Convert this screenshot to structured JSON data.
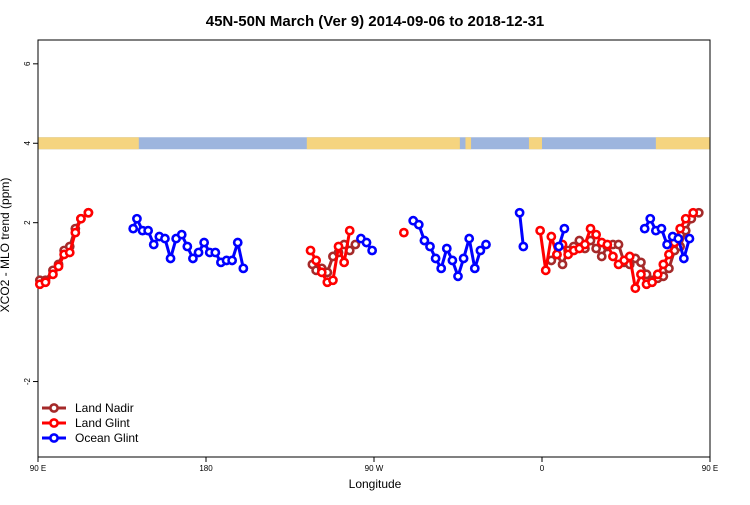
{
  "chart_data": {
    "type": "line",
    "title": "45N-50N March (Ver 9)   2014-09-06 to 2018-12-31",
    "xlabel": "Longitude",
    "ylabel": "XCO2 - MLO trend (ppm)",
    "xlim": [
      90,
      450
    ],
    "ylim": [
      -3.9,
      6.6
    ],
    "x_tick_values": [
      90,
      180,
      270,
      360,
      450,
      540
    ],
    "x_tick_labels": [
      "90 E",
      "180",
      "90 W",
      "0",
      "90 E",
      "180"
    ],
    "y_tick_values": [
      -2,
      2,
      4,
      6
    ],
    "y_tick_labels": [
      "-2",
      "2",
      "4",
      "6"
    ],
    "landmask": {
      "y": 4,
      "land_color": "#F5D47F",
      "ocean_color": "#9DB5DE",
      "land_ranges": [
        [
          90,
          144
        ],
        [
          234,
          316
        ],
        [
          319,
          322
        ],
        [
          353,
          360
        ],
        [
          421,
          505
        ]
      ]
    },
    "legend_position": "bottom-left",
    "series": [
      {
        "name": "Land Nadir",
        "color": "#A52A2A",
        "points": [
          [
            91,
            0.55
          ],
          [
            94,
            0.55
          ],
          [
            98,
            0.8
          ],
          [
            101,
            0.95
          ],
          [
            104,
            1.3
          ],
          [
            107,
            1.4
          ],
          [
            110,
            1.85
          ],
          [
            113,
            2.1
          ],
          [
            117,
            2.25
          ],
          null,
          [
            237,
            0.95
          ],
          [
            239,
            0.8
          ],
          [
            242,
            0.85
          ],
          [
            245,
            0.75
          ],
          [
            248,
            1.15
          ],
          [
            251,
            1.25
          ],
          [
            254,
            1.45
          ],
          [
            257,
            1.3
          ],
          [
            260,
            1.45
          ],
          null,
          [
            365,
            1.05
          ],
          [
            368,
            1.2
          ],
          [
            371,
            0.95
          ],
          [
            374,
            1.3
          ],
          [
            377,
            1.4
          ],
          [
            380,
            1.55
          ],
          [
            383,
            1.35
          ],
          [
            386,
            1.55
          ],
          [
            389,
            1.35
          ],
          [
            392,
            1.15
          ],
          [
            395,
            1.4
          ],
          [
            398,
            1.45
          ],
          [
            401,
            1.45
          ],
          [
            404,
            1.0
          ],
          [
            407,
            0.95
          ],
          [
            410,
            1.1
          ],
          [
            413,
            1.0
          ],
          [
            416,
            0.7
          ],
          [
            419,
            0.55
          ],
          [
            422,
            0.6
          ],
          [
            425,
            0.65
          ],
          [
            428,
            0.85
          ],
          [
            431,
            1.3
          ],
          [
            434,
            1.4
          ],
          [
            437,
            1.8
          ],
          [
            440,
            2.1
          ],
          [
            444,
            2.25
          ]
        ]
      },
      {
        "name": "Land Glint",
        "color": "#FF0000",
        "points": [
          [
            91,
            0.45
          ],
          [
            94,
            0.5
          ],
          [
            98,
            0.7
          ],
          [
            101,
            0.9
          ],
          [
            104,
            1.2
          ],
          [
            107,
            1.25
          ],
          [
            110,
            1.75
          ],
          [
            113,
            2.1
          ],
          [
            117,
            2.25
          ],
          null,
          [
            236,
            1.3
          ],
          [
            239,
            1.05
          ],
          [
            242,
            0.75
          ],
          [
            245,
            0.5
          ],
          [
            248,
            0.55
          ],
          [
            251,
            1.4
          ],
          [
            254,
            1.0
          ],
          [
            257,
            1.8
          ],
          null,
          [
            286,
            1.75
          ],
          null,
          [
            359,
            1.8
          ],
          [
            362,
            0.8
          ],
          [
            365,
            1.65
          ],
          [
            368,
            1.2
          ],
          [
            371,
            1.45
          ],
          [
            374,
            1.2
          ],
          [
            377,
            1.3
          ],
          [
            380,
            1.35
          ],
          [
            383,
            1.45
          ],
          [
            386,
            1.85
          ],
          [
            389,
            1.7
          ],
          [
            392,
            1.5
          ],
          [
            395,
            1.45
          ],
          [
            398,
            1.15
          ],
          [
            401,
            0.95
          ],
          [
            404,
            1.05
          ],
          [
            407,
            1.15
          ],
          [
            410,
            0.35
          ],
          [
            413,
            0.7
          ],
          [
            416,
            0.45
          ],
          [
            419,
            0.5
          ],
          [
            422,
            0.7
          ],
          [
            425,
            0.95
          ],
          [
            428,
            1.2
          ],
          [
            431,
            1.5
          ],
          [
            434,
            1.85
          ],
          [
            437,
            2.1
          ],
          [
            441,
            2.25
          ]
        ]
      },
      {
        "name": "Ocean Glint",
        "color": "#0000FF",
        "points": [
          [
            141,
            1.85
          ],
          [
            143,
            2.1
          ],
          [
            146,
            1.8
          ],
          [
            149,
            1.8
          ],
          [
            152,
            1.45
          ],
          [
            155,
            1.65
          ],
          [
            158,
            1.6
          ],
          [
            161,
            1.1
          ],
          [
            164,
            1.6
          ],
          [
            167,
            1.7
          ],
          [
            170,
            1.4
          ],
          [
            173,
            1.1
          ],
          [
            176,
            1.25
          ],
          [
            179,
            1.5
          ],
          [
            182,
            1.25
          ],
          [
            185,
            1.25
          ],
          [
            188,
            1.0
          ],
          [
            191,
            1.05
          ],
          [
            194,
            1.05
          ],
          [
            197,
            1.5
          ],
          [
            200,
            0.85
          ],
          null,
          [
            263,
            1.6
          ],
          [
            266,
            1.5
          ],
          [
            269,
            1.3
          ],
          null,
          [
            291,
            2.05
          ],
          [
            294,
            1.95
          ],
          [
            297,
            1.55
          ],
          [
            300,
            1.4
          ],
          [
            303,
            1.1
          ],
          [
            306,
            0.85
          ],
          [
            309,
            1.35
          ],
          [
            312,
            1.05
          ],
          [
            315,
            0.65
          ],
          [
            318,
            1.1
          ],
          [
            321,
            1.6
          ],
          [
            324,
            0.85
          ],
          [
            327,
            1.3
          ],
          [
            330,
            1.45
          ],
          null,
          [
            348,
            2.25
          ],
          [
            350,
            1.4
          ],
          null,
          [
            369,
            1.4
          ],
          [
            372,
            1.85
          ],
          null,
          [
            415,
            1.85
          ],
          [
            418,
            2.1
          ],
          [
            421,
            1.8
          ],
          [
            424,
            1.85
          ],
          [
            427,
            1.45
          ],
          [
            430,
            1.65
          ],
          [
            433,
            1.6
          ],
          [
            436,
            1.1
          ],
          [
            439,
            1.6
          ]
        ]
      }
    ]
  }
}
